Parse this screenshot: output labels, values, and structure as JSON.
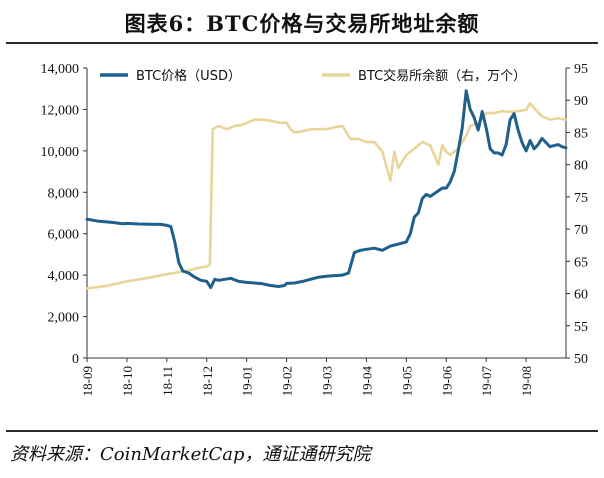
{
  "header": {
    "title": "图表6：BTC价格与交易所地址余额"
  },
  "footer": {
    "source": "资料来源：CoinMarketCap，通证通研究院"
  },
  "chart_data": {
    "type": "line",
    "title": "图表6：BTC价格与交易所地址余额",
    "x_ticks": [
      "18-09",
      "18-10",
      "18-11",
      "18-12",
      "19-01",
      "19-02",
      "19-03",
      "19-04",
      "19-05",
      "19-06",
      "19-07",
      "19-08"
    ],
    "x_range": [
      0,
      12
    ],
    "y_left": {
      "min": 0,
      "max": 14000,
      "ticks": [
        0,
        2000,
        4000,
        6000,
        8000,
        10000,
        12000,
        14000
      ],
      "tick_labels": [
        "0",
        "2,000",
        "4,000",
        "6,000",
        "8,000",
        "10,000",
        "12,000",
        "14,000"
      ]
    },
    "y_right": {
      "min": 50,
      "max": 95,
      "ticks": [
        50,
        55,
        60,
        65,
        70,
        75,
        80,
        85,
        90,
        95
      ],
      "tick_labels": [
        "50",
        "55",
        "60",
        "65",
        "70",
        "75",
        "80",
        "85",
        "90",
        "95"
      ]
    },
    "legend_position": "top",
    "series": [
      {
        "name": "BTC价格（USD）",
        "axis": "left",
        "color": "#1f5f8b",
        "points": [
          [
            0.0,
            6700
          ],
          [
            0.3,
            6600
          ],
          [
            0.6,
            6550
          ],
          [
            0.9,
            6480
          ],
          [
            1.0,
            6500
          ],
          [
            1.3,
            6470
          ],
          [
            1.6,
            6460
          ],
          [
            1.85,
            6450
          ],
          [
            2.0,
            6400
          ],
          [
            2.1,
            6350
          ],
          [
            2.2,
            5600
          ],
          [
            2.3,
            4600
          ],
          [
            2.4,
            4200
          ],
          [
            2.55,
            4100
          ],
          [
            2.7,
            3900
          ],
          [
            2.85,
            3750
          ],
          [
            3.0,
            3700
          ],
          [
            3.1,
            3400
          ],
          [
            3.2,
            3800
          ],
          [
            3.3,
            3750
          ],
          [
            3.45,
            3800
          ],
          [
            3.6,
            3850
          ],
          [
            3.8,
            3700
          ],
          [
            4.0,
            3650
          ],
          [
            4.2,
            3620
          ],
          [
            4.4,
            3580
          ],
          [
            4.6,
            3500
          ],
          [
            4.8,
            3450
          ],
          [
            4.95,
            3500
          ],
          [
            5.0,
            3600
          ],
          [
            5.2,
            3620
          ],
          [
            5.4,
            3700
          ],
          [
            5.6,
            3800
          ],
          [
            5.8,
            3900
          ],
          [
            6.0,
            3950
          ],
          [
            6.2,
            3980
          ],
          [
            6.4,
            4000
          ],
          [
            6.55,
            4100
          ],
          [
            6.7,
            5100
          ],
          [
            6.85,
            5200
          ],
          [
            7.0,
            5250
          ],
          [
            7.2,
            5300
          ],
          [
            7.4,
            5200
          ],
          [
            7.6,
            5400
          ],
          [
            7.8,
            5500
          ],
          [
            8.0,
            5600
          ],
          [
            8.1,
            6000
          ],
          [
            8.2,
            6800
          ],
          [
            8.3,
            7000
          ],
          [
            8.4,
            7700
          ],
          [
            8.5,
            7900
          ],
          [
            8.6,
            7800
          ],
          [
            8.75,
            8000
          ],
          [
            8.9,
            8200
          ],
          [
            9.0,
            8200
          ],
          [
            9.1,
            8500
          ],
          [
            9.2,
            9000
          ],
          [
            9.3,
            10000
          ],
          [
            9.4,
            11100
          ],
          [
            9.5,
            12900
          ],
          [
            9.6,
            12000
          ],
          [
            9.7,
            11600
          ],
          [
            9.8,
            11000
          ],
          [
            9.9,
            11900
          ],
          [
            10.0,
            11100
          ],
          [
            10.1,
            10100
          ],
          [
            10.2,
            9900
          ],
          [
            10.3,
            9900
          ],
          [
            10.4,
            9800
          ],
          [
            10.5,
            10300
          ],
          [
            10.6,
            11500
          ],
          [
            10.7,
            11800
          ],
          [
            10.8,
            11000
          ],
          [
            10.9,
            10400
          ],
          [
            11.0,
            10000
          ],
          [
            11.1,
            10500
          ],
          [
            11.2,
            10100
          ],
          [
            11.3,
            10300
          ],
          [
            11.4,
            10600
          ],
          [
            11.5,
            10400
          ],
          [
            11.6,
            10200
          ],
          [
            11.8,
            10300
          ],
          [
            11.9,
            10200
          ],
          [
            12.0,
            10150
          ]
        ]
      },
      {
        "name": "BTC交易所余额（右，万个）",
        "axis": "right",
        "color": "#e8d59a",
        "points": [
          [
            0.0,
            60.8
          ],
          [
            0.5,
            61.2
          ],
          [
            1.0,
            61.9
          ],
          [
            1.5,
            62.4
          ],
          [
            2.0,
            63.0
          ],
          [
            2.5,
            63.5
          ],
          [
            2.8,
            64.0
          ],
          [
            3.0,
            64.2
          ],
          [
            3.08,
            64.5
          ],
          [
            3.15,
            85.5
          ],
          [
            3.3,
            86.0
          ],
          [
            3.5,
            85.5
          ],
          [
            3.7,
            86.0
          ],
          [
            3.9,
            86.2
          ],
          [
            4.0,
            86.5
          ],
          [
            4.2,
            87.0
          ],
          [
            4.4,
            87.0
          ],
          [
            4.6,
            86.8
          ],
          [
            4.8,
            86.5
          ],
          [
            5.0,
            86.5
          ],
          [
            5.1,
            85.5
          ],
          [
            5.2,
            85.0
          ],
          [
            5.4,
            85.2
          ],
          [
            5.6,
            85.5
          ],
          [
            5.8,
            85.5
          ],
          [
            6.0,
            85.5
          ],
          [
            6.2,
            85.8
          ],
          [
            6.4,
            86.0
          ],
          [
            6.6,
            84.0
          ],
          [
            6.8,
            84.0
          ],
          [
            7.0,
            83.5
          ],
          [
            7.2,
            83.5
          ],
          [
            7.4,
            82.0
          ],
          [
            7.6,
            77.5
          ],
          [
            7.7,
            82.0
          ],
          [
            7.8,
            79.5
          ],
          [
            8.0,
            81.5
          ],
          [
            8.2,
            82.5
          ],
          [
            8.4,
            83.5
          ],
          [
            8.6,
            83.0
          ],
          [
            8.8,
            80.0
          ],
          [
            8.9,
            83.0
          ],
          [
            9.0,
            82.0
          ],
          [
            9.1,
            81.5
          ],
          [
            9.2,
            82.0
          ],
          [
            9.3,
            82.5
          ],
          [
            9.4,
            83.5
          ],
          [
            9.5,
            84.5
          ],
          [
            9.6,
            86.0
          ],
          [
            9.8,
            86.5
          ],
          [
            10.0,
            88.0
          ],
          [
            10.2,
            88.0
          ],
          [
            10.4,
            88.3
          ],
          [
            10.6,
            88.2
          ],
          [
            10.8,
            88.3
          ],
          [
            11.0,
            88.5
          ],
          [
            11.1,
            89.5
          ],
          [
            11.2,
            88.8
          ],
          [
            11.4,
            87.5
          ],
          [
            11.6,
            87.0
          ],
          [
            11.8,
            87.2
          ],
          [
            12.0,
            87.0
          ]
        ]
      }
    ]
  }
}
